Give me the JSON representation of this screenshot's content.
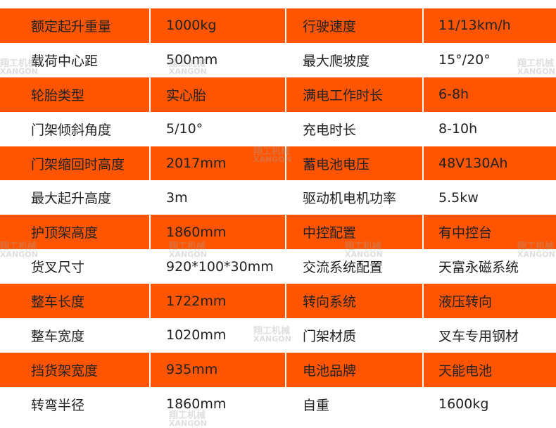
{
  "colors": {
    "accent": "#ff5500",
    "alt_row": "#ffffff"
  },
  "watermark": {
    "cn": "翔工机械",
    "en": "XANGON"
  },
  "rows": [
    [
      "额定起升重量",
      "1000kg",
      "行驶速度",
      "11/13km/h"
    ],
    [
      "载荷中心距",
      "500mm",
      "最大爬坡度",
      "15°/20°"
    ],
    [
      "轮胎类型",
      "实心胎",
      "满电工作时长",
      "6-8h"
    ],
    [
      "门架倾斜角度",
      "5/10°",
      "充电时长",
      "8-10h"
    ],
    [
      "门架缩回时高度",
      "2017mm",
      "蓄电池电压",
      "48V130Ah"
    ],
    [
      "最大起升高度",
      "3m",
      "驱动机电机功率",
      "5.5kw"
    ],
    [
      "护顶架高度",
      "1860mm",
      "中控配置",
      "有中控台"
    ],
    [
      "货叉尺寸",
      "920*100*30mm",
      "交流系统配置",
      "天富永磁系统"
    ],
    [
      "整车长度",
      "1722mm",
      "转向系统",
      "液压转向"
    ],
    [
      "整车宽度",
      "1020mm",
      "门架材质",
      "叉车专用钢材"
    ],
    [
      "挡货架宽度",
      "935mm",
      "电池品牌",
      "天能电池"
    ],
    [
      "转弯半径",
      "1860mm",
      "自重",
      "1600kg"
    ]
  ]
}
